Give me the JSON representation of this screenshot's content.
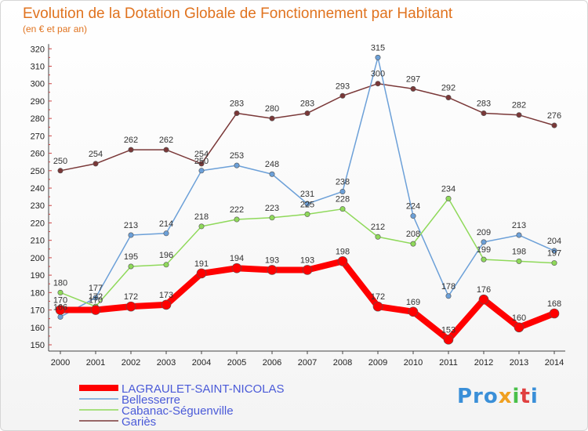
{
  "header": {
    "title": "Evolution de la Dotation Globale de Fonctionnement par Habitant",
    "subtitle": "(en € et par an)"
  },
  "logo": {
    "p": "Pro",
    "x": "x",
    "i": "i",
    "t": "t",
    "i2": "i"
  },
  "chart_data": {
    "type": "line",
    "title": "Evolution de la Dotation Globale de Fonctionnement par Habitant",
    "subtitle": "(en € et par an)",
    "categories": [
      "2000",
      "2001",
      "2002",
      "2003",
      "2004",
      "2005",
      "2006",
      "2007",
      "2008",
      "2009",
      "2010",
      "2011",
      "2012",
      "2013",
      "2014"
    ],
    "ylim": [
      150,
      320
    ],
    "yticks": [
      "150",
      "160",
      "170",
      "180",
      "190",
      "200",
      "210",
      "220",
      "230",
      "240",
      "250",
      "260",
      "270",
      "280",
      "290",
      "300",
      "310",
      "320"
    ],
    "grid": false,
    "legend_position": "bottom-left",
    "series": [
      {
        "name": "LAGRAULET-SAINT-NICOLAS",
        "color": "#ff0000",
        "values": [
          170,
          170,
          172,
          173,
          191,
          194,
          193,
          193,
          198,
          172,
          169,
          153,
          176,
          160,
          168
        ]
      },
      {
        "name": "Bellesserre",
        "color": "#6ca0d8",
        "values": [
          166,
          177,
          213,
          214,
          250,
          253,
          248,
          231,
          238,
          315,
          224,
          178,
          209,
          213,
          204
        ]
      },
      {
        "name": "Cabanac-Séguenville",
        "color": "#8fd95a",
        "values": [
          180,
          172,
          195,
          196,
          218,
          222,
          223,
          225,
          228,
          212,
          208,
          234,
          199,
          198,
          197
        ]
      },
      {
        "name": "Gariès",
        "color": "#7a3838",
        "values": [
          250,
          254,
          262,
          262,
          254,
          283,
          280,
          283,
          293,
          300,
          297,
          292,
          283,
          282,
          276
        ]
      }
    ]
  }
}
